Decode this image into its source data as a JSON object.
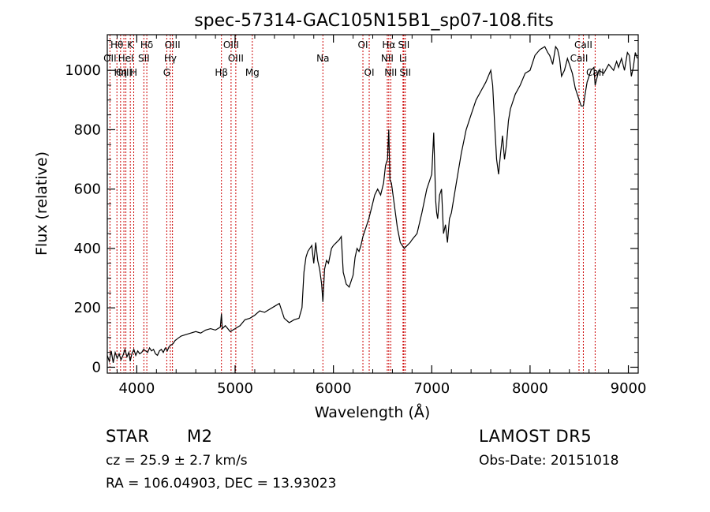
{
  "chart_data": {
    "type": "line",
    "title": "spec-57314-GAC105N15B1_sp07-108.fits",
    "xlabel": "Wavelength (Å)",
    "ylabel": "Flux (relative)",
    "xlim": [
      3700,
      9100
    ],
    "ylim": [
      -20,
      1120
    ],
    "x_ticks": [
      4000,
      5000,
      6000,
      7000,
      8000,
      9000
    ],
    "y_ticks": [
      0,
      200,
      400,
      600,
      800,
      1000
    ],
    "grid": false,
    "series": [
      {
        "x": [
          3700,
          3720,
          3740,
          3760,
          3780,
          3800,
          3820,
          3840,
          3860,
          3880,
          3900,
          3920,
          3933,
          3950,
          3970,
          3990,
          4010,
          4030,
          4050,
          4070,
          4090,
          4110,
          4130,
          4150,
          4170,
          4190,
          4210,
          4230,
          4250,
          4270,
          4290,
          4310,
          4330,
          4350,
          4370,
          4390,
          4410,
          4430,
          4450,
          4500,
          4550,
          4600,
          4650,
          4700,
          4750,
          4800,
          4850,
          4861,
          4870,
          4900,
          4950,
          5000,
          5050,
          5100,
          5150,
          5200,
          5250,
          5300,
          5350,
          5400,
          5450,
          5500,
          5550,
          5600,
          5650,
          5680,
          5700,
          5720,
          5740,
          5760,
          5780,
          5800,
          5820,
          5840,
          5860,
          5880,
          5893,
          5910,
          5930,
          5950,
          5980,
          6000,
          6030,
          6060,
          6080,
          6100,
          6130,
          6160,
          6180,
          6200,
          6220,
          6240,
          6260,
          6280,
          6300,
          6330,
          6360,
          6390,
          6420,
          6450,
          6480,
          6510,
          6530,
          6550,
          6563,
          6575,
          6590,
          6610,
          6630,
          6650,
          6680,
          6700,
          6720,
          6750,
          6780,
          6800,
          6850,
          6900,
          6950,
          7000,
          7020,
          7040,
          7050,
          7060,
          7080,
          7100,
          7120,
          7140,
          7160,
          7180,
          7200,
          7250,
          7300,
          7350,
          7400,
          7450,
          7500,
          7550,
          7600,
          7620,
          7640,
          7660,
          7680,
          7700,
          7720,
          7740,
          7760,
          7780,
          7800,
          7850,
          7900,
          7950,
          8000,
          8050,
          8100,
          8150,
          8180,
          8200,
          8230,
          8260,
          8280,
          8300,
          8320,
          8350,
          8380,
          8400,
          8430,
          8460,
          8500,
          8520,
          8542,
          8560,
          8580,
          8600,
          8620,
          8650,
          8662,
          8700,
          8750,
          8800,
          8850,
          8880,
          8900,
          8930,
          8960,
          8990,
          9010,
          9030,
          9050,
          9070,
          9090
        ],
        "y": [
          40,
          20,
          55,
          15,
          50,
          30,
          45,
          25,
          40,
          60,
          35,
          50,
          20,
          45,
          60,
          40,
          55,
          45,
          50,
          60,
          55,
          50,
          65,
          55,
          60,
          45,
          40,
          55,
          60,
          50,
          65,
          55,
          70,
          75,
          80,
          90,
          95,
          100,
          105,
          110,
          115,
          120,
          115,
          125,
          130,
          125,
          135,
          180,
          130,
          140,
          120,
          130,
          140,
          160,
          165,
          175,
          190,
          185,
          195,
          205,
          215,
          165,
          150,
          160,
          165,
          200,
          320,
          370,
          390,
          400,
          410,
          350,
          420,
          360,
          330,
          280,
          220,
          330,
          360,
          350,
          400,
          410,
          420,
          430,
          440,
          320,
          280,
          270,
          290,
          310,
          370,
          400,
          390,
          410,
          440,
          470,
          500,
          540,
          580,
          600,
          580,
          620,
          680,
          700,
          800,
          630,
          620,
          570,
          520,
          470,
          420,
          410,
          400,
          410,
          420,
          430,
          450,
          520,
          600,
          650,
          790,
          560,
          520,
          500,
          580,
          600,
          450,
          480,
          420,
          500,
          520,
          620,
          720,
          800,
          850,
          900,
          930,
          960,
          1000,
          950,
          820,
          700,
          650,
          720,
          780,
          700,
          750,
          830,
          870,
          920,
          950,
          990,
          1000,
          1050,
          1070,
          1080,
          1060,
          1050,
          1020,
          1080,
          1070,
          1040,
          980,
          1000,
          1040,
          1020,
          990,
          940,
          900,
          880,
          880,
          920,
          960,
          980,
          1000,
          1010,
          950,
          1000,
          990,
          1020,
          1000,
          1030,
          1010,
          1040,
          1000,
          1060,
          1050,
          980,
          1010,
          1060,
          1040
        ]
      }
    ]
  },
  "lines": [
    {
      "label": "Hθ",
      "x": 3798,
      "row": 0
    },
    {
      "label": "OII",
      "x": 3727,
      "row": 1
    },
    {
      "label": "OIII",
      "x": 3869,
      "row": 2
    },
    {
      "label": "K",
      "x": 3934,
      "row": 0
    },
    {
      "label": "HeI",
      "x": 3889,
      "row": 1
    },
    {
      "label": "Hη",
      "x": 3835,
      "row": 2
    },
    {
      "label": "H",
      "x": 3969,
      "row": 2
    },
    {
      "label": "SII",
      "x": 4072,
      "row": 1
    },
    {
      "label": "Hδ",
      "x": 4102,
      "row": 0
    },
    {
      "label": "OIII",
      "x": 4363,
      "row": 0
    },
    {
      "label": "Hγ",
      "x": 4341,
      "row": 1
    },
    {
      "label": "G",
      "x": 4305,
      "row": 2
    },
    {
      "label": "OIII",
      "x": 4959,
      "row": 0
    },
    {
      "label": "OIII",
      "x": 5007,
      "row": 1
    },
    {
      "label": "Hβ",
      "x": 4861,
      "row": 2
    },
    {
      "label": "Mg",
      "x": 5175,
      "row": 2
    },
    {
      "label": "Na",
      "x": 5893,
      "row": 1
    },
    {
      "label": "OI",
      "x": 6300,
      "row": 0
    },
    {
      "label": "OI",
      "x": 6364,
      "row": 2
    },
    {
      "label": "Hα",
      "x": 6563,
      "row": 0
    },
    {
      "label": "NII",
      "x": 6548,
      "row": 1
    },
    {
      "label": "NII",
      "x": 6583,
      "row": 2
    },
    {
      "label": "SII",
      "x": 6716,
      "row": 0
    },
    {
      "label": "Li",
      "x": 6708,
      "row": 1
    },
    {
      "label": "SII",
      "x": 6731,
      "row": 2
    },
    {
      "label": "CaII",
      "x": 8542,
      "row": 0
    },
    {
      "label": "CaII",
      "x": 8498,
      "row": 1
    },
    {
      "label": "CaII",
      "x": 8662,
      "row": 2
    }
  ],
  "footer": {
    "object_class": "STAR",
    "subclass": "M2",
    "survey": "LAMOST  DR5",
    "cz": "cz = 25.9 ± 2.7 km/s",
    "obs_date": "Obs-Date: 20151018",
    "coords": "RA = 106.04903, DEC =  13.93023"
  },
  "colors": {
    "spectrum": "#000000",
    "line_marker": "#cc0000",
    "axes": "#000000"
  }
}
